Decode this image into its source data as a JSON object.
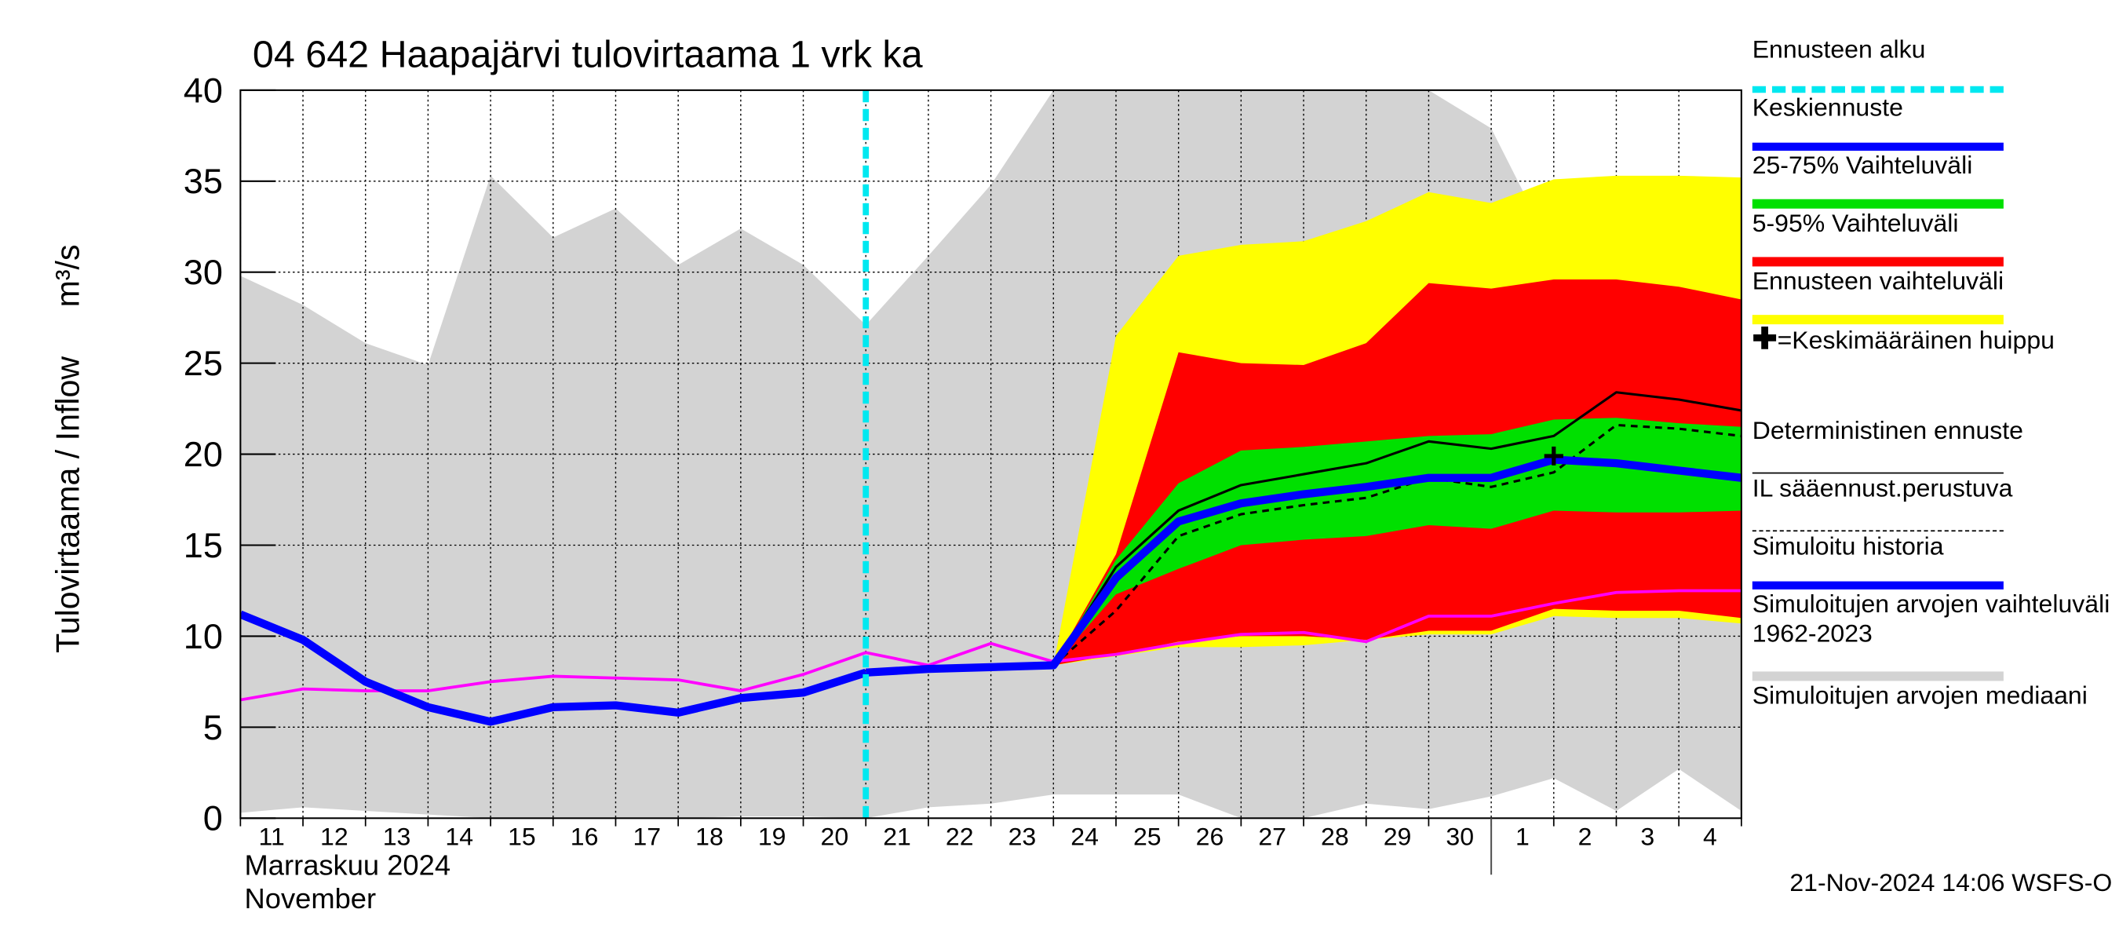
{
  "chart_data": {
    "type": "hydrograph",
    "title": "04 642 Haapajärvi tulovirtaama 1 vrk ka",
    "ylabel": "Tulovirtaama / Inflow",
    "yunit": "m³/s",
    "month_fi": "Marraskuu 2024",
    "month_en": "November",
    "month_boundary": "1",
    "timestamp": "21-Nov-2024 14:06 WSFS-O",
    "categories": [
      "11",
      "12",
      "13",
      "14",
      "15",
      "16",
      "17",
      "18",
      "19",
      "20",
      "21",
      "22",
      "23",
      "24",
      "25",
      "26",
      "27",
      "28",
      "29",
      "30",
      "1",
      "2",
      "3",
      "4",
      null
    ],
    "ylim": [
      0,
      40
    ],
    "yticks": [
      0,
      5,
      10,
      15,
      20,
      25,
      30,
      35,
      40
    ],
    "grid": true,
    "forecast_start": {
      "name": "Ennusteen alku",
      "x": "21",
      "color": "#00e8f0"
    },
    "series": [
      {
        "name": "Keskiennuste",
        "kind": "line",
        "color": "#0000ff",
        "width": 6,
        "values": [
          null,
          null,
          null,
          null,
          null,
          null,
          null,
          null,
          null,
          null,
          8.0,
          8.2,
          8.3,
          8.4,
          13.2,
          16.3,
          17.3,
          17.8,
          18.2,
          18.7,
          18.7,
          19.7,
          19.5,
          19.1,
          18.7
        ]
      },
      {
        "name": "25-75% Vaihteluväli",
        "kind": "band",
        "color": "#00e000",
        "low": [
          null,
          null,
          null,
          null,
          null,
          null,
          null,
          null,
          null,
          null,
          null,
          null,
          null,
          8.4,
          12.3,
          13.7,
          15.0,
          15.3,
          15.5,
          16.1,
          15.9,
          16.9,
          16.8,
          16.8,
          16.9
        ],
        "high": [
          null,
          null,
          null,
          null,
          null,
          null,
          null,
          null,
          null,
          null,
          null,
          null,
          null,
          8.4,
          14.2,
          18.4,
          20.2,
          20.4,
          20.7,
          21.0,
          21.1,
          21.9,
          22.0,
          21.7,
          21.5
        ]
      },
      {
        "name": "5-95% Vaihteluväli",
        "kind": "band",
        "color": "#ff0000",
        "low": [
          null,
          null,
          null,
          null,
          null,
          null,
          null,
          null,
          null,
          null,
          null,
          null,
          null,
          8.4,
          9.0,
          9.7,
          10.0,
          10.0,
          9.8,
          10.3,
          10.3,
          11.5,
          11.4,
          11.4,
          11.0
        ],
        "high": [
          null,
          null,
          null,
          null,
          null,
          null,
          null,
          null,
          null,
          null,
          null,
          null,
          null,
          8.4,
          14.5,
          25.6,
          25.0,
          24.9,
          26.1,
          29.4,
          29.1,
          29.6,
          29.6,
          29.2,
          28.5
        ]
      },
      {
        "name": "Ennusteen vaihteluväli",
        "kind": "band",
        "color": "#ffff00",
        "low": [
          null,
          null,
          null,
          null,
          null,
          null,
          null,
          null,
          null,
          null,
          null,
          null,
          null,
          8.4,
          8.9,
          9.4,
          9.4,
          9.5,
          9.8,
          10.1,
          10.1,
          11.1,
          11.0,
          11.0,
          10.7
        ],
        "high": [
          null,
          null,
          null,
          null,
          null,
          null,
          null,
          null,
          null,
          null,
          null,
          null,
          null,
          8.4,
          26.5,
          30.9,
          31.5,
          31.7,
          32.8,
          34.4,
          33.8,
          35.1,
          35.3,
          35.3,
          35.2
        ]
      },
      {
        "name": "=Keskimääräinen huippu",
        "kind": "marker",
        "color": "#000000",
        "values": [
          null,
          null,
          null,
          null,
          null,
          null,
          null,
          null,
          null,
          null,
          null,
          null,
          null,
          null,
          null,
          null,
          null,
          null,
          null,
          null,
          null,
          19.9,
          null,
          null,
          null
        ]
      },
      {
        "name": "Deterministinen ennuste",
        "kind": "line",
        "color": "#000000",
        "width": 1.8,
        "values": [
          null,
          null,
          null,
          null,
          null,
          null,
          null,
          null,
          null,
          null,
          null,
          null,
          null,
          8.4,
          13.8,
          16.9,
          18.3,
          18.9,
          19.5,
          20.7,
          20.3,
          21.0,
          23.4,
          23.0,
          22.4
        ]
      },
      {
        "name": "IL sääennust.perustuva",
        "kind": "line",
        "color": "#000000",
        "width": 1.8,
        "dashed": true,
        "values": [
          null,
          null,
          null,
          null,
          null,
          null,
          null,
          null,
          null,
          null,
          null,
          null,
          null,
          8.4,
          11.4,
          15.5,
          16.7,
          17.2,
          17.6,
          18.7,
          18.2,
          19.0,
          21.6,
          21.4,
          21.0
        ]
      },
      {
        "name": "Simuloitu historia",
        "kind": "line",
        "color": "#0000ff",
        "width": 6,
        "values": [
          11.2,
          9.8,
          7.5,
          6.1,
          5.3,
          6.1,
          6.2,
          5.8,
          6.6,
          6.9,
          8.0,
          null,
          null,
          null,
          null,
          null,
          null,
          null,
          null,
          null,
          null,
          null,
          null,
          null,
          null
        ]
      },
      {
        "name": "Simuloitujen arvojen vaihteluväli 1962-2023",
        "kind": "band",
        "color": "#d3d3d3",
        "low": [
          0.3,
          0.6,
          0.4,
          0.2,
          0,
          0,
          0,
          0,
          0.1,
          0.1,
          0,
          0.6,
          0.8,
          1.3,
          1.3,
          1.3,
          0,
          0,
          0.8,
          0.5,
          1.2,
          2.2,
          0.4,
          2.7,
          0.4
        ],
        "high": [
          29.8,
          28.2,
          26.1,
          24.9,
          35.3,
          31.9,
          33.5,
          30.4,
          32.4,
          30.4,
          27.1,
          30.9,
          34.8,
          40,
          40,
          40,
          40,
          40,
          40,
          40,
          37.9,
          31.1,
          34,
          28.8,
          29
        ]
      },
      {
        "name": "Simuloitujen arvojen mediaani",
        "kind": "line",
        "color": "#ff00ff",
        "width": 2.2,
        "values": [
          6.5,
          7.1,
          7.0,
          7.0,
          7.5,
          7.8,
          7.7,
          7.6,
          7.0,
          7.9,
          9.1,
          8.4,
          9.6,
          8.6,
          9.0,
          9.6,
          10.1,
          10.2,
          9.7,
          11.1,
          11.1,
          11.8,
          12.4,
          12.5,
          12.5
        ]
      }
    ]
  }
}
